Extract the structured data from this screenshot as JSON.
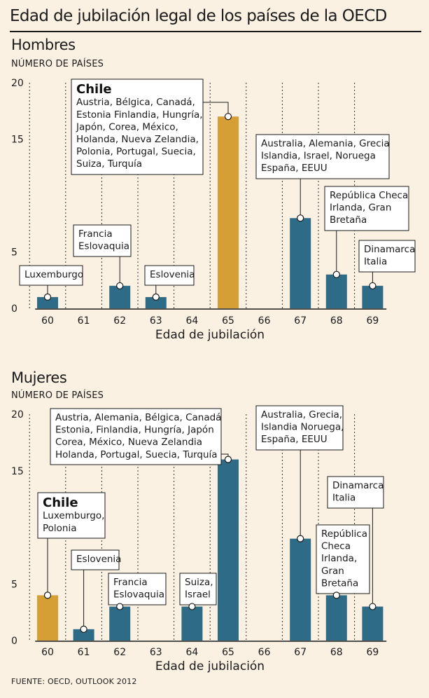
{
  "title": "Edad de jubilación legal de los países de la OECD",
  "source": "FUENTE: OECD, OUTLOOK 2012",
  "colors": {
    "bar": "#2e6b86",
    "highlight": "#d59f36",
    "background": "#fbf1e2"
  },
  "chart_data": [
    {
      "type": "bar",
      "title": "Hombres",
      "ylabel": "NÚMERO DE PAÍSES",
      "xlabel": "Edad de jubilación",
      "categories": [
        "60",
        "61",
        "62",
        "63",
        "64",
        "65",
        "66",
        "67",
        "68",
        "69"
      ],
      "values": [
        1,
        0,
        2,
        1,
        0,
        17,
        0,
        8,
        3,
        2
      ],
      "highlight": "65",
      "yticks": [
        "20",
        "15",
        "5",
        "0"
      ],
      "ylim": [
        0,
        20
      ],
      "annotations": [
        {
          "age": "60",
          "bold": "",
          "lines": [
            "Luxemburgo"
          ]
        },
        {
          "age": "62",
          "bold": "",
          "lines": [
            "Francia",
            "Eslovaquia"
          ]
        },
        {
          "age": "63",
          "bold": "",
          "lines": [
            "Eslovenia"
          ]
        },
        {
          "age": "65",
          "bold": "Chile",
          "lines": [
            "Austria, Bélgica, Canadá,",
            "Estonia Finlandia, Hungría,",
            "Japón, Corea, México,",
            "Holanda, Nueva Zelandia,",
            "Polonia, Portugal, Suecia,",
            "Suiza, Turquía"
          ]
        },
        {
          "age": "67",
          "bold": "",
          "lines": [
            "Australia, Alemania, Grecia",
            "Islandia, Israel, Noruega",
            "España, EEUU"
          ]
        },
        {
          "age": "68",
          "bold": "",
          "lines": [
            "República Checa",
            "Irlanda, Gran",
            "Bretaña"
          ]
        },
        {
          "age": "69",
          "bold": "",
          "lines": [
            "Dinamarca",
            "Italia"
          ]
        }
      ]
    },
    {
      "type": "bar",
      "title": "Mujeres",
      "ylabel": "NÚMERO DE PAÍSES",
      "xlabel": "Edad de jubilación",
      "categories": [
        "60",
        "61",
        "62",
        "63",
        "64",
        "65",
        "66",
        "67",
        "68",
        "69"
      ],
      "values": [
        4,
        1,
        3,
        0,
        3,
        16,
        0,
        9,
        4,
        3
      ],
      "highlight": "60",
      "yticks": [
        "20",
        "15",
        "5",
        "0"
      ],
      "ylim": [
        0,
        20
      ],
      "annotations": [
        {
          "age": "60",
          "bold": "Chile",
          "lines": [
            "Luxemburgo,",
            "Polonia"
          ]
        },
        {
          "age": "61",
          "bold": "",
          "lines": [
            "Eslovenia"
          ]
        },
        {
          "age": "62",
          "bold": "",
          "lines": [
            "Francia",
            "Eslovaquia"
          ]
        },
        {
          "age": "64",
          "bold": "",
          "lines": [
            "Suiza,",
            "Israel"
          ]
        },
        {
          "age": "65",
          "bold": "",
          "lines": [
            "Austria, Alemania, Bélgica, Canadá",
            "Estonia, Finlandia, Hungría, Japón",
            "Corea, México, Nueva Zelandia",
            "Holanda, Portugal, Suecia, Turquía"
          ]
        },
        {
          "age": "67",
          "bold": "",
          "lines": [
            "Australia, Grecia,",
            "Islandia Noruega,",
            "España, EEUU"
          ]
        },
        {
          "age": "68",
          "bold": "",
          "lines": [
            "República",
            "Checa",
            "Irlanda,",
            "Gran",
            "Bretaña"
          ]
        },
        {
          "age": "69",
          "bold": "",
          "lines": [
            "Dinamarca",
            "Italia"
          ]
        }
      ]
    }
  ]
}
